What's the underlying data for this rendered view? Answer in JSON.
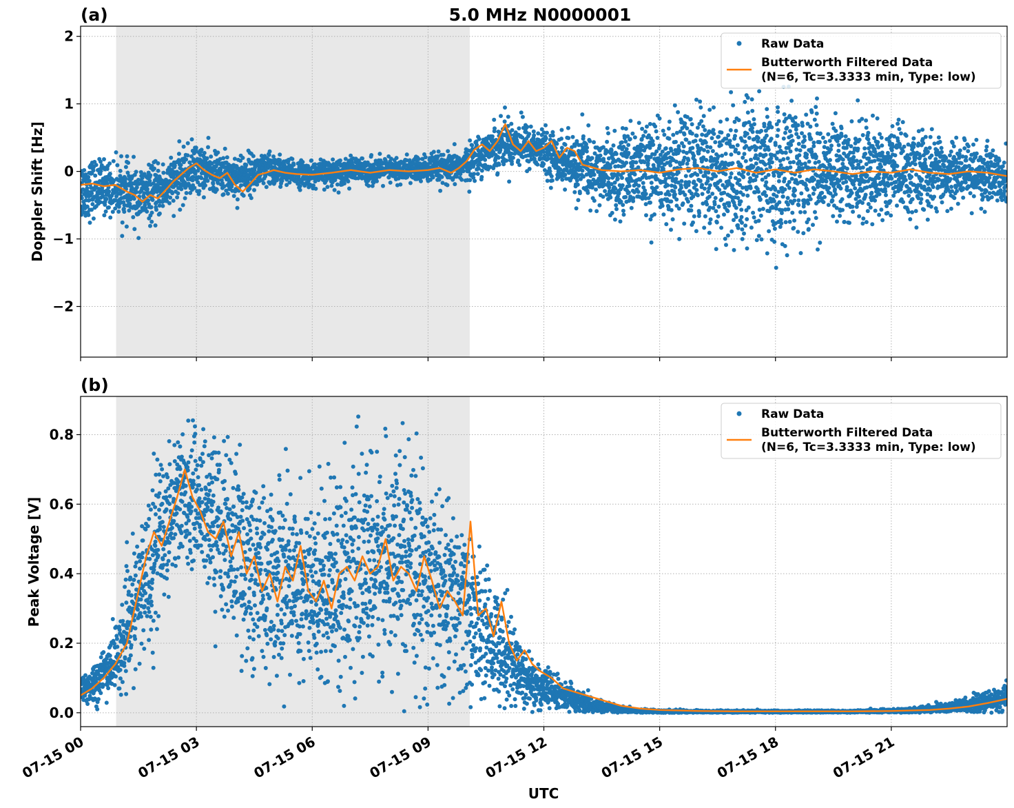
{
  "colors": {
    "raw": "#1f77b4",
    "filtered": "#ff7f0e",
    "shade": "#e8e8e8",
    "grid": "#b0b0b0"
  },
  "chart_data": [
    {
      "type": "scatter",
      "panel_label": "(a)",
      "title": "5.0 MHz N0000001",
      "xlabel": "",
      "ylabel": "Doppler Shift [Hz]",
      "xlim_hours": [
        0,
        24
      ],
      "ylim": [
        -2.75,
        2.15
      ],
      "yticks": [
        2,
        1,
        0,
        -1,
        -2
      ],
      "ytick_labels": [
        "2",
        "1",
        "0",
        "−1",
        "−2"
      ],
      "shaded_span_hours": [
        0.92,
        10.08
      ],
      "grid": true,
      "legend_position": "top-right",
      "legend": {
        "raw": "Raw Data",
        "filtered_line1": "Butterworth Filtered Data",
        "filtered_line2": "(N=6, Tc=3.3333 min, Type: low)"
      },
      "series": [
        {
          "name": "Raw Data",
          "kind": "points",
          "x_hours": [
            0.0,
            0.5,
            1.0,
            1.5,
            2.0,
            2.5,
            3.0,
            3.5,
            4.0,
            4.5,
            5.0,
            5.5,
            6.0,
            6.5,
            7.0,
            7.5,
            8.0,
            8.5,
            9.0,
            9.5,
            10.0,
            10.5,
            11.0,
            11.5,
            12.0,
            12.5,
            13.0,
            13.5,
            14.0,
            14.5,
            15.0,
            15.5,
            16.0,
            16.5,
            17.0,
            17.5,
            18.0,
            18.5,
            19.0,
            19.5,
            20.0,
            20.5,
            21.0,
            21.5,
            22.0,
            22.5,
            23.0,
            23.5,
            24.0
          ],
          "center": [
            -0.28,
            -0.22,
            -0.27,
            -0.38,
            -0.3,
            -0.12,
            0.05,
            -0.02,
            -0.08,
            -0.02,
            0.02,
            -0.03,
            -0.04,
            -0.02,
            0.02,
            0.0,
            0.02,
            0.02,
            0.04,
            0.02,
            0.1,
            0.3,
            0.45,
            0.4,
            0.3,
            0.15,
            0.02,
            0.02,
            0.0,
            0.0,
            -0.02,
            0.0,
            0.02,
            -0.02,
            0.02,
            0.0,
            0.0,
            0.02,
            0.0,
            0.0,
            0.0,
            -0.02,
            0.0,
            0.0,
            -0.02,
            -0.02,
            -0.02,
            -0.05,
            -0.08
          ],
          "spread": [
            0.55,
            0.45,
            0.45,
            0.5,
            0.45,
            0.42,
            0.45,
            0.32,
            0.4,
            0.32,
            0.3,
            0.22,
            0.22,
            0.22,
            0.22,
            0.22,
            0.22,
            0.22,
            0.25,
            0.25,
            0.3,
            0.35,
            0.42,
            0.4,
            0.35,
            0.45,
            0.55,
            0.62,
            0.65,
            0.72,
            0.8,
            0.9,
            1.0,
            1.05,
            1.1,
            1.12,
            1.1,
            1.05,
            1.0,
            0.95,
            0.85,
            0.8,
            0.7,
            0.65,
            0.6,
            0.55,
            0.5,
            0.45,
            0.42
          ]
        },
        {
          "name": "Butterworth Filtered Data",
          "kind": "line",
          "x_hours": [
            0.0,
            0.3,
            0.6,
            0.9,
            1.2,
            1.4,
            1.6,
            1.8,
            2.0,
            2.2,
            2.4,
            2.6,
            2.8,
            3.0,
            3.2,
            3.4,
            3.6,
            3.8,
            4.0,
            4.2,
            4.4,
            4.6,
            4.8,
            5.0,
            5.3,
            5.6,
            6.0,
            6.5,
            7.0,
            7.5,
            8.0,
            8.5,
            9.0,
            9.3,
            9.6,
            9.8,
            10.0,
            10.2,
            10.4,
            10.6,
            10.8,
            11.0,
            11.2,
            11.4,
            11.6,
            11.8,
            12.0,
            12.2,
            12.4,
            12.6,
            12.8,
            13.0,
            13.5,
            14.0,
            14.5,
            15.0,
            15.5,
            16.0,
            16.5,
            17.0,
            17.5,
            18.0,
            18.5,
            19.0,
            19.5,
            20.0,
            20.5,
            21.0,
            21.5,
            22.0,
            22.5,
            23.0,
            23.5,
            24.0
          ],
          "y": [
            -0.2,
            -0.18,
            -0.22,
            -0.2,
            -0.3,
            -0.35,
            -0.45,
            -0.35,
            -0.4,
            -0.28,
            -0.15,
            -0.05,
            0.05,
            0.12,
            0.02,
            -0.05,
            -0.1,
            -0.02,
            -0.2,
            -0.3,
            -0.18,
            -0.05,
            -0.02,
            0.02,
            -0.02,
            -0.04,
            -0.05,
            -0.02,
            0.02,
            -0.02,
            0.02,
            0.0,
            0.02,
            0.05,
            -0.02,
            0.05,
            0.15,
            0.32,
            0.4,
            0.3,
            0.45,
            0.7,
            0.4,
            0.3,
            0.45,
            0.3,
            0.35,
            0.45,
            0.2,
            0.35,
            0.3,
            0.1,
            0.02,
            0.0,
            0.02,
            -0.02,
            0.03,
            0.05,
            0.0,
            0.05,
            -0.02,
            0.03,
            -0.02,
            0.03,
            0.0,
            -0.04,
            0.0,
            -0.02,
            0.03,
            -0.02,
            -0.04,
            0.0,
            -0.02,
            -0.07
          ]
        }
      ]
    },
    {
      "type": "scatter",
      "panel_label": "(b)",
      "title": "",
      "xlabel": "UTC",
      "ylabel": "Peak Voltage [V]",
      "xlim_hours": [
        0,
        24
      ],
      "ylim": [
        -0.04,
        0.91
      ],
      "yticks": [
        0.0,
        0.2,
        0.4,
        0.6,
        0.8
      ],
      "ytick_labels": [
        "0.0",
        "0.2",
        "0.4",
        "0.6",
        "0.8"
      ],
      "shaded_span_hours": [
        0.92,
        10.08
      ],
      "grid": true,
      "legend_position": "top-right",
      "x_ticks_hours": [
        0,
        3,
        6,
        9,
        12,
        15,
        18,
        21
      ],
      "x_tick_labels": [
        "07-15 00",
        "07-15 03",
        "07-15 06",
        "07-15 09",
        "07-15 12",
        "07-15 15",
        "07-15 18",
        "07-15 21"
      ],
      "legend": {
        "raw": "Raw Data",
        "filtered_line1": "Butterworth Filtered Data",
        "filtered_line2": "(N=6, Tc=3.3333 min, Type: low)"
      },
      "series": [
        {
          "name": "Raw Data",
          "kind": "points",
          "x_hours": [
            0.0,
            0.5,
            1.0,
            1.5,
            2.0,
            2.5,
            3.0,
            3.5,
            4.0,
            4.5,
            5.0,
            5.5,
            6.0,
            6.5,
            7.0,
            7.5,
            8.0,
            8.5,
            9.0,
            9.5,
            10.0,
            10.5,
            11.0,
            11.5,
            12.0,
            12.5,
            13.0,
            13.5,
            14.0,
            14.5,
            15.0,
            15.5,
            16.0,
            16.5,
            17.0,
            17.5,
            18.0,
            18.5,
            19.0,
            19.5,
            20.0,
            20.5,
            21.0,
            21.5,
            22.0,
            22.5,
            23.0,
            23.5,
            24.0
          ],
          "center": [
            0.06,
            0.1,
            0.17,
            0.33,
            0.5,
            0.62,
            0.62,
            0.55,
            0.48,
            0.4,
            0.38,
            0.4,
            0.34,
            0.4,
            0.4,
            0.42,
            0.45,
            0.42,
            0.38,
            0.33,
            0.3,
            0.22,
            0.18,
            0.1,
            0.07,
            0.05,
            0.03,
            0.015,
            0.008,
            0.005,
            0.004,
            0.004,
            0.003,
            0.003,
            0.003,
            0.003,
            0.003,
            0.003,
            0.003,
            0.003,
            0.003,
            0.004,
            0.005,
            0.007,
            0.01,
            0.015,
            0.02,
            0.03,
            0.045
          ],
          "spread": [
            0.05,
            0.08,
            0.12,
            0.22,
            0.28,
            0.22,
            0.22,
            0.28,
            0.3,
            0.32,
            0.3,
            0.32,
            0.3,
            0.35,
            0.32,
            0.35,
            0.32,
            0.35,
            0.33,
            0.3,
            0.28,
            0.2,
            0.17,
            0.1,
            0.07,
            0.05,
            0.035,
            0.02,
            0.01,
            0.006,
            0.005,
            0.005,
            0.004,
            0.004,
            0.004,
            0.004,
            0.004,
            0.004,
            0.004,
            0.004,
            0.004,
            0.005,
            0.006,
            0.008,
            0.012,
            0.018,
            0.025,
            0.035,
            0.045
          ]
        },
        {
          "name": "Butterworth Filtered Data",
          "kind": "line",
          "x_hours": [
            0.0,
            0.3,
            0.6,
            0.9,
            1.2,
            1.5,
            1.7,
            1.9,
            2.1,
            2.3,
            2.5,
            2.7,
            2.9,
            3.1,
            3.3,
            3.5,
            3.7,
            3.9,
            4.1,
            4.3,
            4.5,
            4.7,
            4.9,
            5.1,
            5.3,
            5.5,
            5.7,
            5.9,
            6.1,
            6.3,
            6.5,
            6.7,
            6.9,
            7.1,
            7.3,
            7.5,
            7.7,
            7.9,
            8.1,
            8.3,
            8.5,
            8.7,
            8.9,
            9.1,
            9.3,
            9.5,
            9.7,
            9.9,
            10.1,
            10.3,
            10.5,
            10.7,
            10.9,
            11.1,
            11.3,
            11.5,
            11.7,
            11.9,
            12.2,
            12.5,
            12.8,
            13.1,
            13.4,
            13.7,
            14.0,
            14.5,
            15.0,
            16.0,
            17.0,
            18.0,
            19.0,
            20.0,
            21.0,
            22.0,
            22.5,
            23.0,
            23.5,
            24.0
          ],
          "y": [
            0.05,
            0.07,
            0.1,
            0.14,
            0.2,
            0.35,
            0.45,
            0.52,
            0.48,
            0.55,
            0.62,
            0.7,
            0.62,
            0.58,
            0.52,
            0.5,
            0.55,
            0.45,
            0.52,
            0.4,
            0.45,
            0.35,
            0.4,
            0.32,
            0.42,
            0.38,
            0.48,
            0.35,
            0.32,
            0.38,
            0.3,
            0.4,
            0.42,
            0.38,
            0.45,
            0.4,
            0.42,
            0.5,
            0.38,
            0.42,
            0.4,
            0.35,
            0.45,
            0.38,
            0.3,
            0.35,
            0.32,
            0.28,
            0.55,
            0.28,
            0.3,
            0.22,
            0.32,
            0.2,
            0.15,
            0.18,
            0.14,
            0.12,
            0.1,
            0.07,
            0.06,
            0.05,
            0.04,
            0.03,
            0.02,
            0.012,
            0.008,
            0.005,
            0.004,
            0.004,
            0.004,
            0.004,
            0.005,
            0.008,
            0.012,
            0.018,
            0.028,
            0.04
          ]
        }
      ]
    }
  ]
}
